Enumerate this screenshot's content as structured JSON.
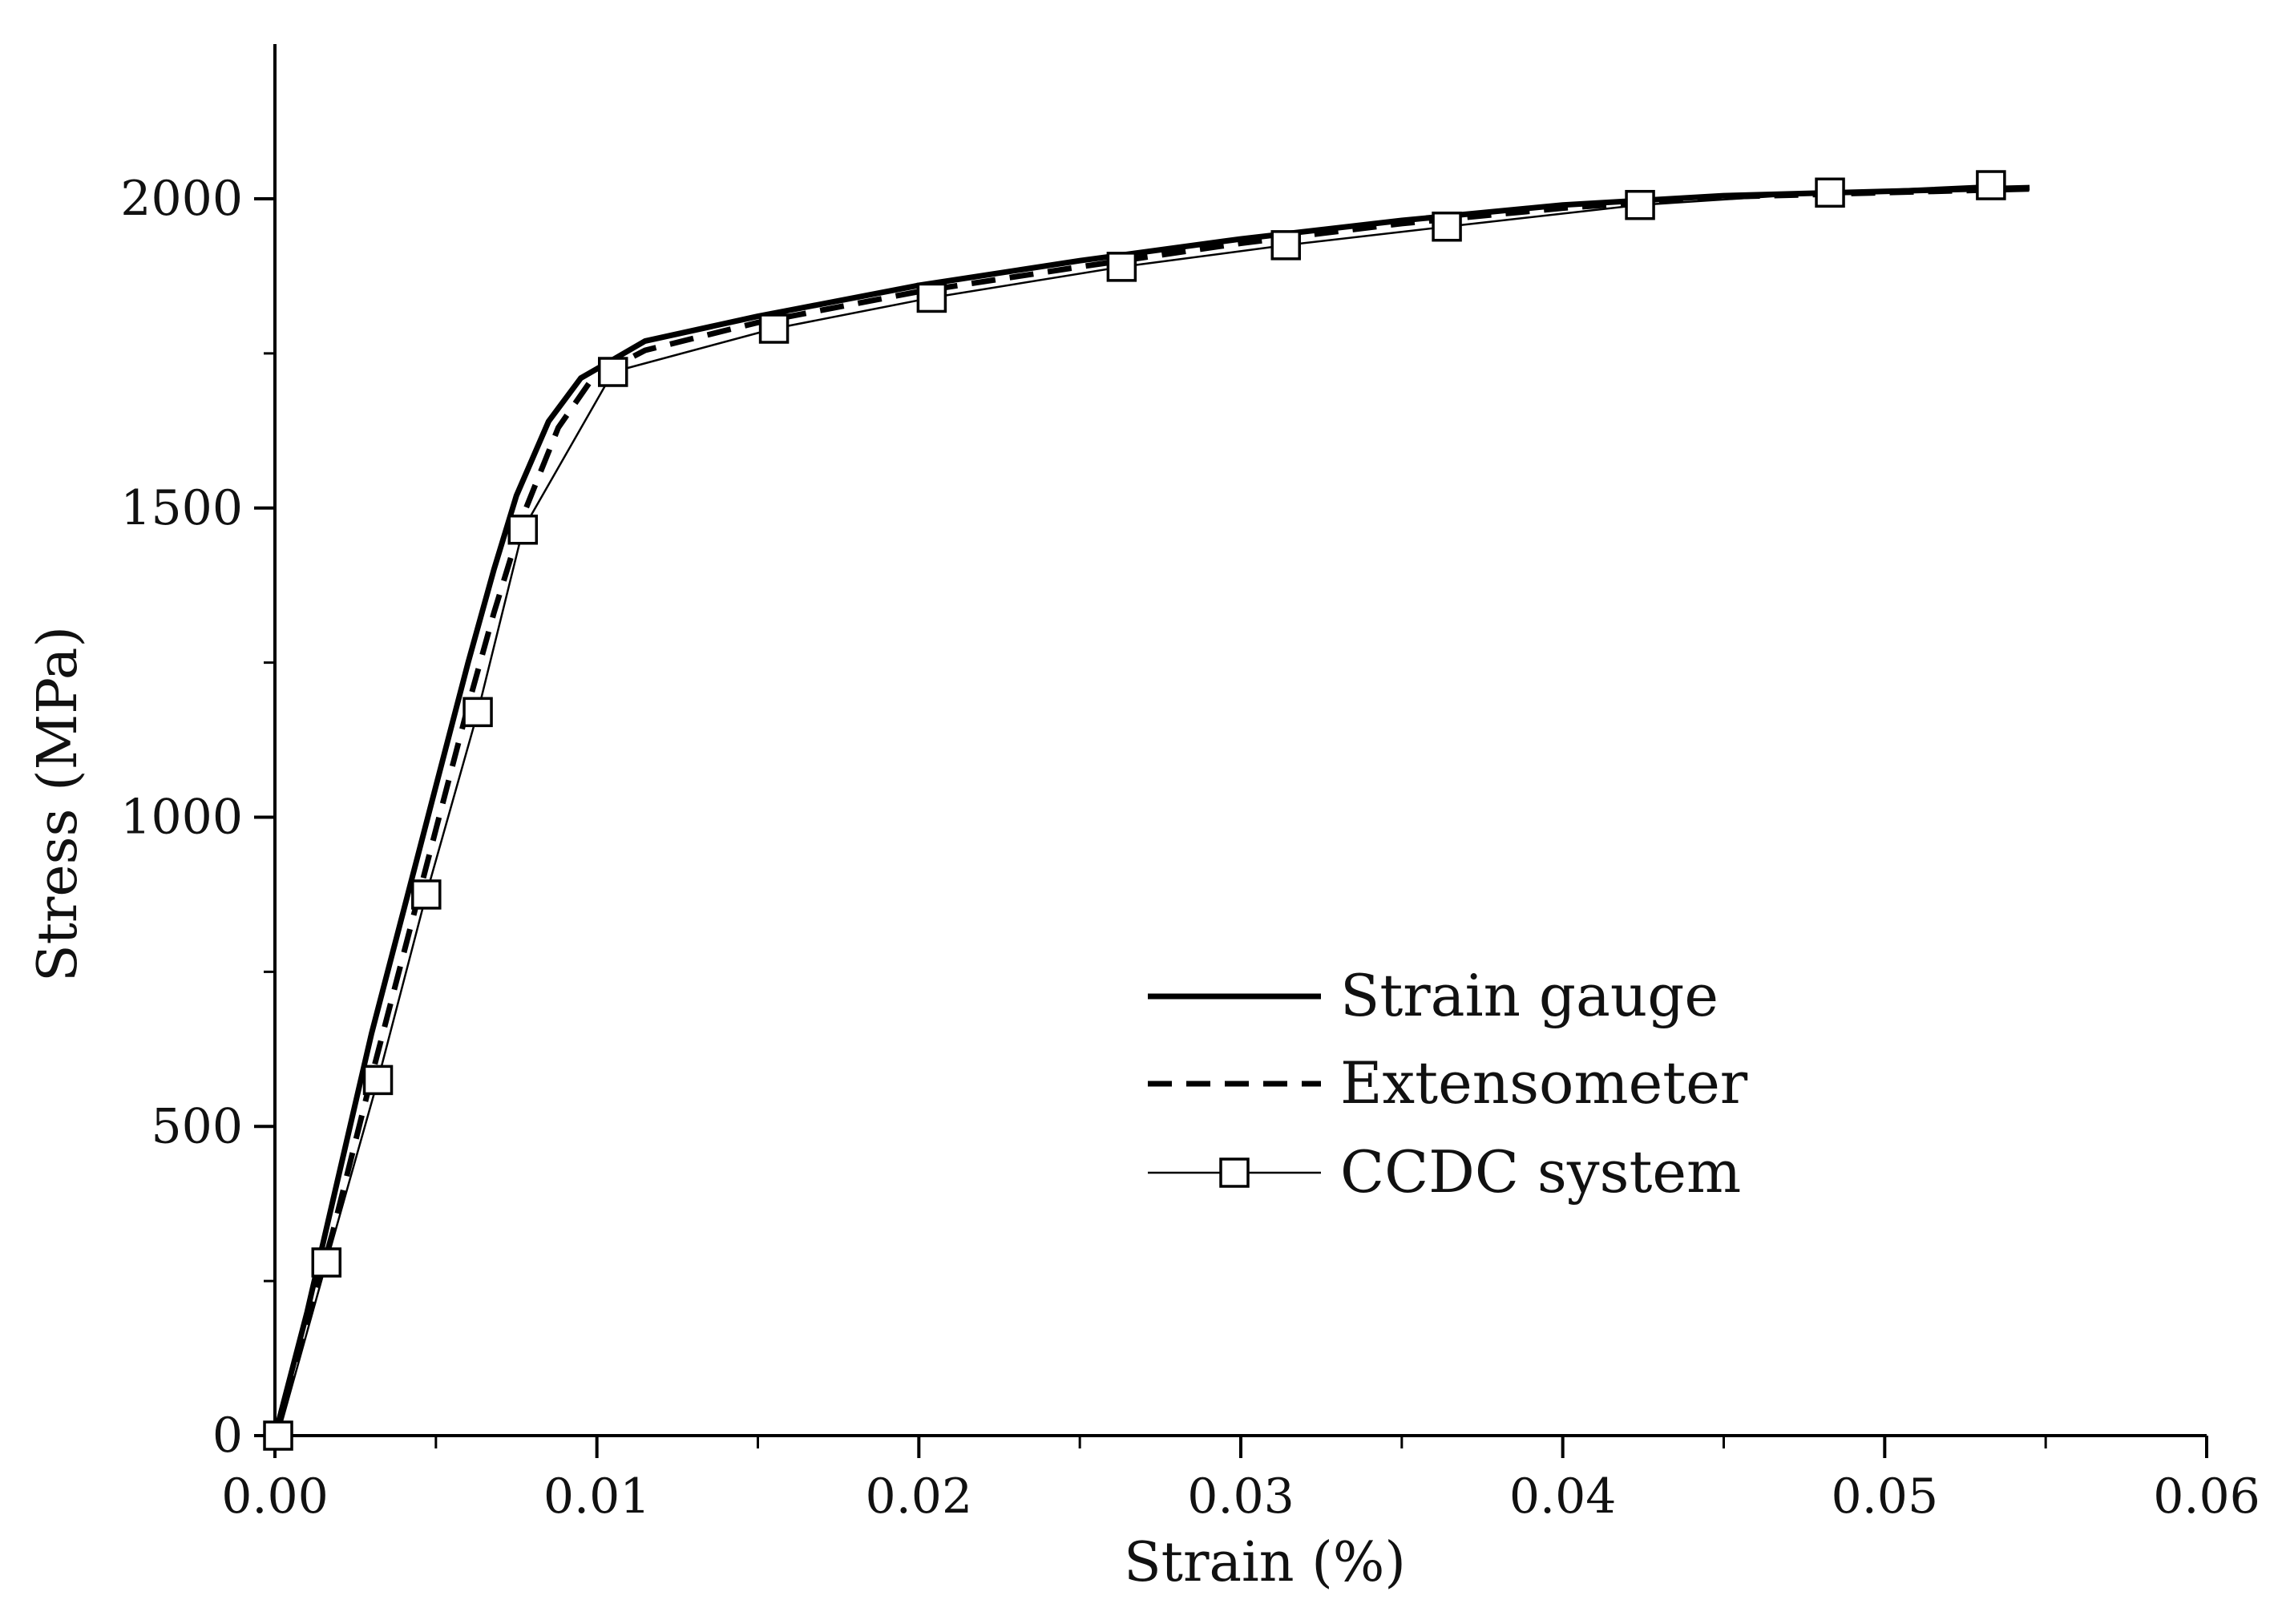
{
  "chart_data": {
    "type": "line",
    "title": "",
    "xlabel": "Strain (%)",
    "ylabel": "Stress (MPa)",
    "xlim": [
      0,
      0.06
    ],
    "ylim": [
      0,
      2250
    ],
    "grid": false,
    "legend_position": "center-right",
    "x_ticks": [
      0.0,
      0.01,
      0.02,
      0.03,
      0.04,
      0.05,
      0.06
    ],
    "x_tick_labels": [
      "0.00",
      "0.01",
      "0.02",
      "0.03",
      "0.04",
      "0.05",
      "0.06"
    ],
    "y_ticks": [
      0,
      500,
      1000,
      1500,
      2000
    ],
    "y_tick_labels": [
      "0",
      "500",
      "1000",
      "1500",
      "2000"
    ],
    "y_minor_ticks": [
      250,
      750,
      1250,
      1750
    ],
    "x_minor_ticks": [
      0.005,
      0.015,
      0.025,
      0.035,
      0.045,
      0.055
    ],
    "series": [
      {
        "name": "Strain gauge",
        "style": "solid-thick",
        "color": "#000000",
        "x": [
          0,
          0.001,
          0.0018,
          0.003,
          0.004,
          0.005,
          0.006,
          0.0068,
          0.0075,
          0.0085,
          0.0095,
          0.0105,
          0.0115,
          0.015,
          0.02,
          0.025,
          0.03,
          0.035,
          0.04,
          0.045,
          0.05,
          0.0545
        ],
        "y": [
          0,
          200,
          380,
          650,
          850,
          1050,
          1250,
          1400,
          1520,
          1640,
          1710,
          1740,
          1770,
          1810,
          1860,
          1900,
          1935,
          1965,
          1990,
          2005,
          2012,
          2018
        ]
      },
      {
        "name": "Extensometer",
        "style": "dashed-thick",
        "color": "#000000",
        "x": [
          0,
          0.001,
          0.0018,
          0.003,
          0.004,
          0.005,
          0.006,
          0.0068,
          0.0078,
          0.0088,
          0.0098,
          0.0105,
          0.0115,
          0.015,
          0.02,
          0.025,
          0.03,
          0.035,
          0.04,
          0.045,
          0.05,
          0.0545
        ],
        "y": [
          0,
          180,
          330,
          580,
          780,
          980,
          1180,
          1330,
          1500,
          1630,
          1705,
          1728,
          1755,
          1800,
          1850,
          1890,
          1928,
          1960,
          1985,
          2003,
          2010,
          2016
        ]
      },
      {
        "name": "CCDC system",
        "style": "thin-square-markers",
        "color": "#000000",
        "x": [
          0.0001,
          0.0016,
          0.0032,
          0.0047,
          0.0063,
          0.0077,
          0.0105,
          0.0155,
          0.0204,
          0.0263,
          0.0314,
          0.0364,
          0.0424,
          0.0483,
          0.0533
        ],
        "y": [
          0,
          280,
          575,
          875,
          1170,
          1465,
          1720,
          1790,
          1840,
          1890,
          1925,
          1955,
          1990,
          2010,
          2022
        ]
      }
    ]
  }
}
